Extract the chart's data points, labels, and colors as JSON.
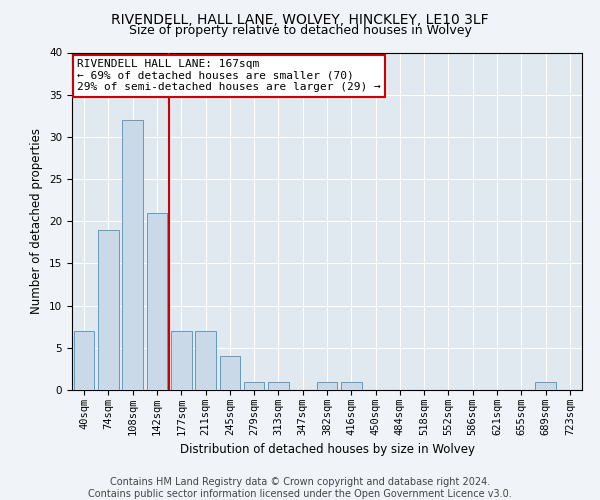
{
  "title_line1": "RIVENDELL, HALL LANE, WOLVEY, HINCKLEY, LE10 3LF",
  "title_line2": "Size of property relative to detached houses in Wolvey",
  "xlabel": "Distribution of detached houses by size in Wolvey",
  "ylabel": "Number of detached properties",
  "categories": [
    "40sqm",
    "74sqm",
    "108sqm",
    "142sqm",
    "177sqm",
    "211sqm",
    "245sqm",
    "279sqm",
    "313sqm",
    "347sqm",
    "382sqm",
    "416sqm",
    "450sqm",
    "484sqm",
    "518sqm",
    "552sqm",
    "586sqm",
    "621sqm",
    "655sqm",
    "689sqm",
    "723sqm"
  ],
  "values": [
    7,
    19,
    32,
    21,
    7,
    7,
    4,
    1,
    1,
    0,
    1,
    1,
    0,
    0,
    0,
    0,
    0,
    0,
    0,
    1,
    0
  ],
  "bar_color": "#c9d9e8",
  "bar_edge_color": "#6699bb",
  "vline_color": "#cc0000",
  "vline_position": 3.5,
  "annotation_text": "RIVENDELL HALL LANE: 167sqm\n← 69% of detached houses are smaller (70)\n29% of semi-detached houses are larger (29) →",
  "annotation_box_color": "#ffffff",
  "annotation_box_edge_color": "#cc0000",
  "ylim": [
    0,
    40
  ],
  "yticks": [
    0,
    5,
    10,
    15,
    20,
    25,
    30,
    35,
    40
  ],
  "fig_bg_color": "#f0f4f8",
  "plot_bg_color": "#e0e8f0",
  "grid_color": "#ffffff",
  "footer_text": "Contains HM Land Registry data © Crown copyright and database right 2024.\nContains public sector information licensed under the Open Government Licence v3.0.",
  "title_fontsize": 10,
  "subtitle_fontsize": 9,
  "axis_label_fontsize": 8.5,
  "tick_fontsize": 7.5,
  "annotation_fontsize": 8,
  "footer_fontsize": 7
}
